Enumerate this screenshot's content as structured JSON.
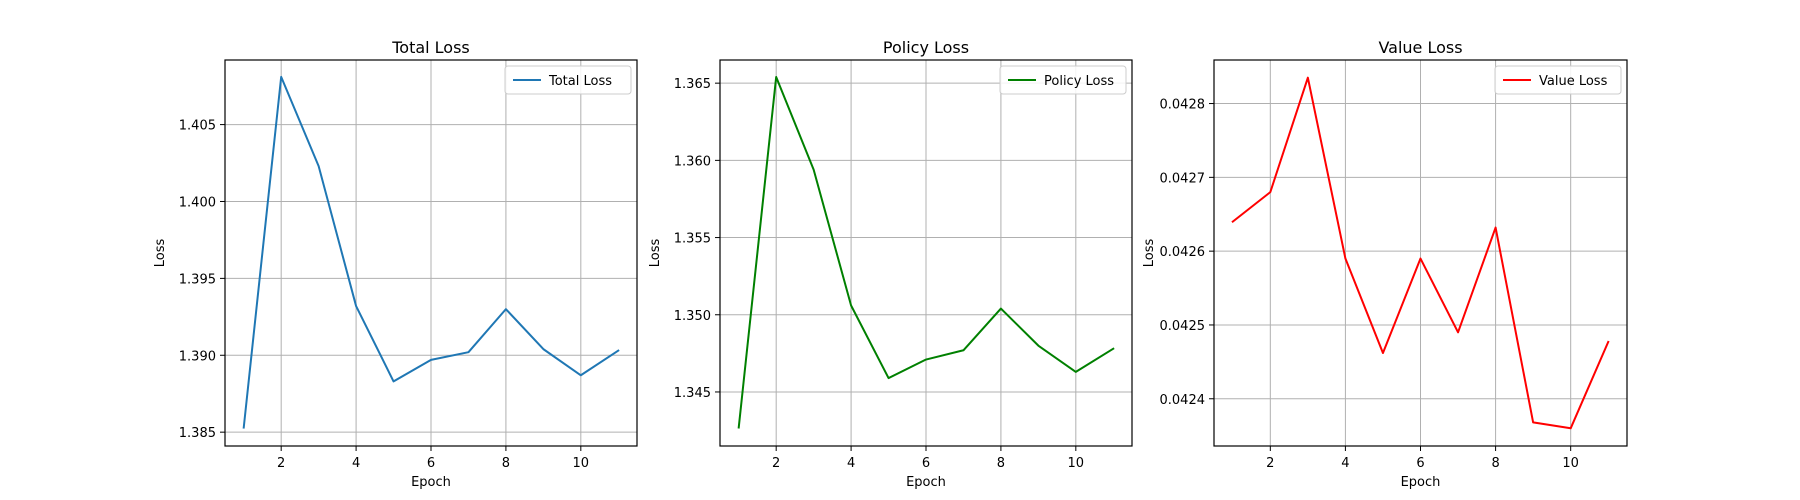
{
  "chart_data": [
    {
      "type": "line",
      "title": "Total Loss",
      "xlabel": "Epoch",
      "ylabel": "Loss",
      "x": [
        1,
        2,
        3,
        4,
        5,
        6,
        7,
        8,
        9,
        10,
        11
      ],
      "series": [
        {
          "name": "Total Loss",
          "color": "#1f77b4",
          "values": [
            1.3853,
            1.4081,
            1.4023,
            1.3932,
            1.3883,
            1.3897,
            1.3902,
            1.393,
            1.3904,
            1.3887,
            1.3903
          ]
        }
      ],
      "xlim": [
        0.5,
        11.5
      ],
      "ylim": [
        1.3841,
        1.4092
      ],
      "xticks": [
        2,
        4,
        6,
        8,
        10
      ],
      "xtick_labels": [
        "2",
        "4",
        "6",
        "8",
        "10"
      ],
      "yticks": [
        1.385,
        1.39,
        1.395,
        1.4,
        1.405
      ],
      "ytick_labels": [
        "1.385",
        "1.390",
        "1.395",
        "1.400",
        "1.405"
      ],
      "grid": true,
      "legend_position": "upper right"
    },
    {
      "type": "line",
      "title": "Policy Loss",
      "xlabel": "Epoch",
      "ylabel": "Loss",
      "x": [
        1,
        2,
        3,
        4,
        5,
        6,
        7,
        8,
        9,
        10,
        11
      ],
      "series": [
        {
          "name": "Policy Loss",
          "color": "#008000",
          "values": [
            1.3427,
            1.3654,
            1.3594,
            1.3506,
            1.3459,
            1.3471,
            1.3477,
            1.3504,
            1.348,
            1.3463,
            1.3478
          ]
        }
      ],
      "xlim": [
        0.5,
        11.5
      ],
      "ylim": [
        1.3415,
        1.3665
      ],
      "xticks": [
        2,
        4,
        6,
        8,
        10
      ],
      "xtick_labels": [
        "2",
        "4",
        "6",
        "8",
        "10"
      ],
      "yticks": [
        1.345,
        1.35,
        1.355,
        1.36,
        1.365
      ],
      "ytick_labels": [
        "1.345",
        "1.350",
        "1.355",
        "1.360",
        "1.365"
      ],
      "grid": true,
      "legend_position": "upper right"
    },
    {
      "type": "line",
      "title": "Value Loss",
      "xlabel": "Epoch",
      "ylabel": "Loss",
      "x": [
        1,
        2,
        3,
        4,
        5,
        6,
        7,
        8,
        9,
        10,
        11
      ],
      "series": [
        {
          "name": "Value Loss",
          "color": "#ff0000",
          "values": [
            0.04264,
            0.04268,
            0.042835,
            0.04259,
            0.042462,
            0.04259,
            0.04249,
            0.042632,
            0.042368,
            0.04236,
            0.042477
          ]
        }
      ],
      "xlim": [
        0.5,
        11.5
      ],
      "ylim": [
        0.042336,
        0.042859
      ],
      "xticks": [
        2,
        4,
        6,
        8,
        10
      ],
      "xtick_labels": [
        "2",
        "4",
        "6",
        "8",
        "10"
      ],
      "yticks": [
        0.0424,
        0.0425,
        0.0426,
        0.0427,
        0.0428
      ],
      "ytick_labels": [
        "0.0424",
        "0.0425",
        "0.0426",
        "0.0427",
        "0.0428"
      ],
      "grid": true,
      "legend_position": "upper right"
    }
  ]
}
